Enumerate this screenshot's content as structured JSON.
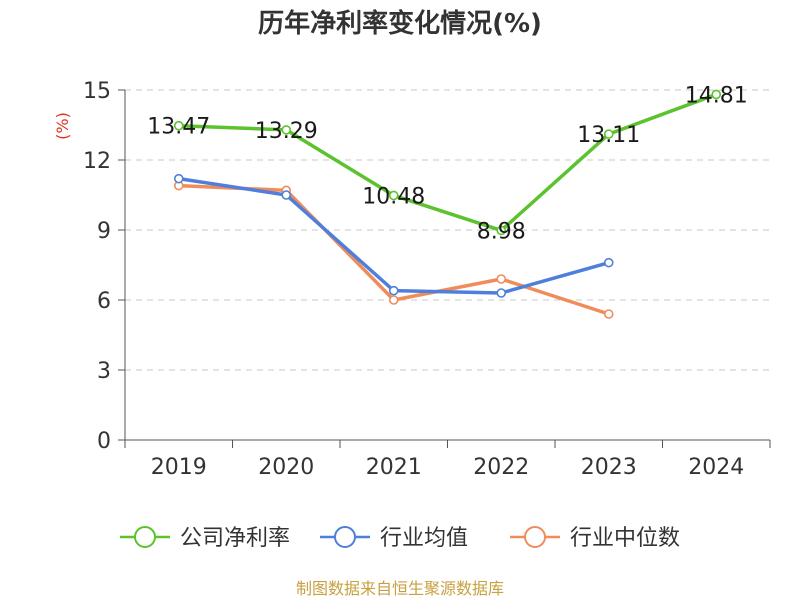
{
  "chart_data": {
    "type": "line",
    "title": "历年净利率变化情况(%)",
    "ylabel": "(%)",
    "categories": [
      "2019",
      "2020",
      "2021",
      "2022",
      "2023",
      "2024"
    ],
    "ylim": [
      0,
      15
    ],
    "yticks": [
      "0",
      "3",
      "6",
      "9",
      "12",
      "15"
    ],
    "grid": true,
    "legend_position": "bottom",
    "series": [
      {
        "name": "公司净利率",
        "color": "#5cc22e",
        "values": [
          13.47,
          13.29,
          10.48,
          8.98,
          13.11,
          14.81
        ],
        "labels": [
          "13.47",
          "13.29",
          "10.48",
          "8.98",
          "13.11",
          "14.81"
        ]
      },
      {
        "name": "行业均值",
        "color": "#4f7fdb",
        "values": [
          11.2,
          10.5,
          6.4,
          6.3,
          7.6,
          null
        ]
      },
      {
        "name": "行业中位数",
        "color": "#f08c5a",
        "values": [
          10.9,
          10.7,
          6.0,
          6.9,
          5.4,
          null
        ]
      }
    ]
  },
  "source": "制图数据来自恒生聚源数据库"
}
